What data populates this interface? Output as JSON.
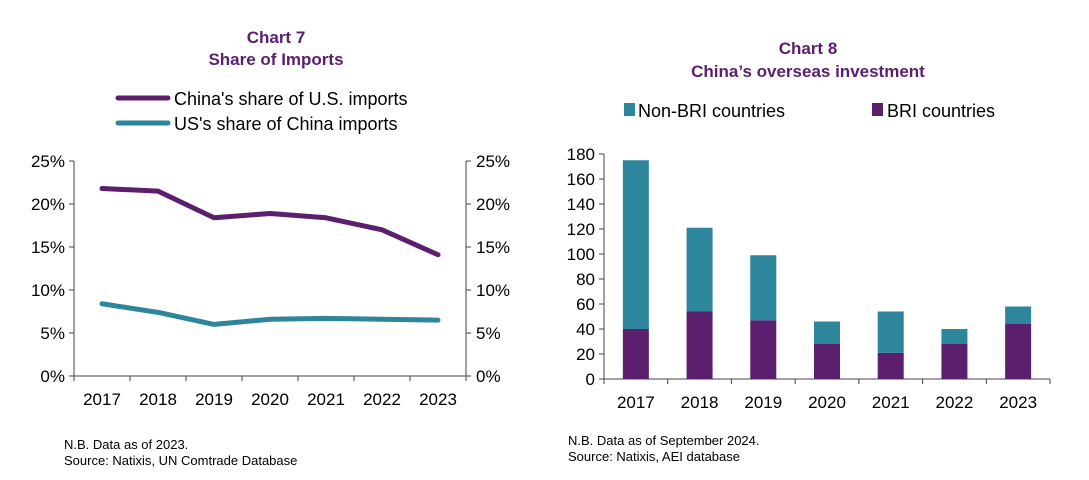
{
  "chart_data": [
    {
      "type": "line",
      "title": "Chart 7",
      "subtitle": "Share of Imports",
      "categories": [
        "2017",
        "2018",
        "2019",
        "2020",
        "2021",
        "2022",
        "2023"
      ],
      "series": [
        {
          "name": "China's share of U.S. imports",
          "values": [
            0.218,
            0.215,
            0.184,
            0.189,
            0.184,
            0.17,
            0.141
          ],
          "color": "#5b1f6e"
        },
        {
          "name": "US's share of China imports",
          "values": [
            0.084,
            0.074,
            0.06,
            0.066,
            0.067,
            0.066,
            0.065
          ],
          "color": "#2e869c"
        }
      ],
      "yticks": [
        "0%",
        "5%",
        "10%",
        "15%",
        "20%",
        "25%"
      ],
      "ylim": [
        0,
        0.25
      ],
      "secondary_axis": true,
      "grid": false,
      "legend_position": "top"
    },
    {
      "type": "bar",
      "stacked": true,
      "title": "Chart 8",
      "subtitle": "China’s overseas investment",
      "categories": [
        "2017",
        "2018",
        "2019",
        "2020",
        "2021",
        "2022",
        "2023"
      ],
      "series": [
        {
          "name": "BRI countries",
          "values": [
            40,
            54,
            47,
            28,
            21,
            28,
            44
          ],
          "color": "#5b1f6e"
        },
        {
          "name": "Non-BRI countries",
          "values": [
            135,
            67,
            52,
            18,
            33,
            12,
            14
          ],
          "color": "#2e869c"
        }
      ],
      "yticks": [
        "0",
        "20",
        "40",
        "60",
        "80",
        "100",
        "120",
        "140",
        "160",
        "180"
      ],
      "ylim": [
        0,
        180
      ],
      "grid": false,
      "legend_position": "top"
    }
  ],
  "notes": {
    "left": {
      "line1": "N.B. Data as of 2023.",
      "line2": "Source: Natixis, UN Comtrade Database"
    },
    "right": {
      "line1": "N.B. Data as of September 2024.",
      "line2": "Source: Natixis, AEI database"
    }
  }
}
